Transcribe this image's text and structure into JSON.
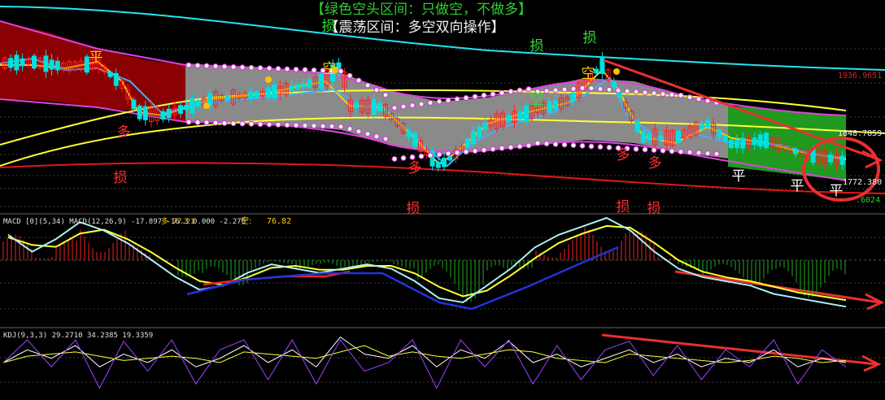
{
  "header": {
    "green_title": "【绿色空头区间：只做空，不做多】",
    "white_title": "【震荡区间：多空双向操作】"
  },
  "price_labels": {
    "upper": "1936.9651",
    "mid": "1848.7859",
    "low": "1772.380",
    "bottom": ".6024"
  },
  "macd_header": {
    "text": "MACD [0](5,34)  MACD(12,26,9) -17.897 -16.3  0.000  -2.270",
    "side_label": "空:",
    "side_value": "76.82",
    "overlay": "多  77.21"
  },
  "kdj_header": {
    "text": "KDJ(9,3,3) 29.2710 34.2385 19.3359"
  },
  "annotations": [
    {
      "text": "平",
      "color": "#ffd000"
    },
    {
      "text": "多",
      "color": "#ff3030"
    },
    {
      "text": "损",
      "color": "#ff3030"
    },
    {
      "text": "损",
      "color": "#33dd33"
    },
    {
      "text": "空",
      "color": "#ffd000"
    },
    {
      "text": "多",
      "color": "#ff3030"
    },
    {
      "text": "空",
      "color": "#33dd33"
    },
    {
      "text": "损",
      "color": "#33dd33"
    },
    {
      "text": "损",
      "color": "#33dd33"
    },
    {
      "text": "空",
      "color": "#ffd000"
    },
    {
      "text": "多",
      "color": "#ff3030"
    },
    {
      "text": "多",
      "color": "#ff3030"
    },
    {
      "text": "平",
      "color": "#ffffff"
    },
    {
      "text": "平",
      "color": "#ffffff"
    },
    {
      "text": "平",
      "color": "#ffffff"
    },
    {
      "text": "损",
      "color": "#ff3030"
    },
    {
      "text": "损",
      "color": "#ff3030"
    },
    {
      "text": "损",
      "color": "#ff3030"
    }
  ],
  "chart_data": {
    "type": "line",
    "description_colors": {
      "up": "#ff2020",
      "down": "#00dddd",
      "zone_bear": "#22aa22",
      "zone_range": "#888888",
      "zone_left": "#8b0000"
    },
    "macd_dif": [
      0.6,
      0.2,
      0.5,
      0.9,
      0.7,
      0.4,
      0.0,
      -0.4,
      -0.7,
      -0.6,
      -0.3,
      -0.1,
      -0.2,
      -0.3,
      -0.2,
      -0.1,
      -0.2,
      -0.5,
      -0.9,
      -1.0,
      -0.6,
      -0.2,
      0.3,
      0.6,
      0.8,
      1.0,
      0.7,
      0.2,
      -0.2,
      -0.4,
      -0.5,
      -0.6,
      -0.8,
      -0.9,
      -1.0,
      -1.1
    ],
    "kdj_k": [
      40,
      55,
      45,
      60,
      35,
      50,
      40,
      55,
      35,
      45,
      60,
      40,
      55,
      35,
      70,
      50,
      45,
      60,
      35,
      55,
      45,
      65,
      40,
      50,
      35,
      45,
      55,
      40,
      50,
      35,
      45,
      40,
      55,
      35,
      45,
      40
    ]
  }
}
